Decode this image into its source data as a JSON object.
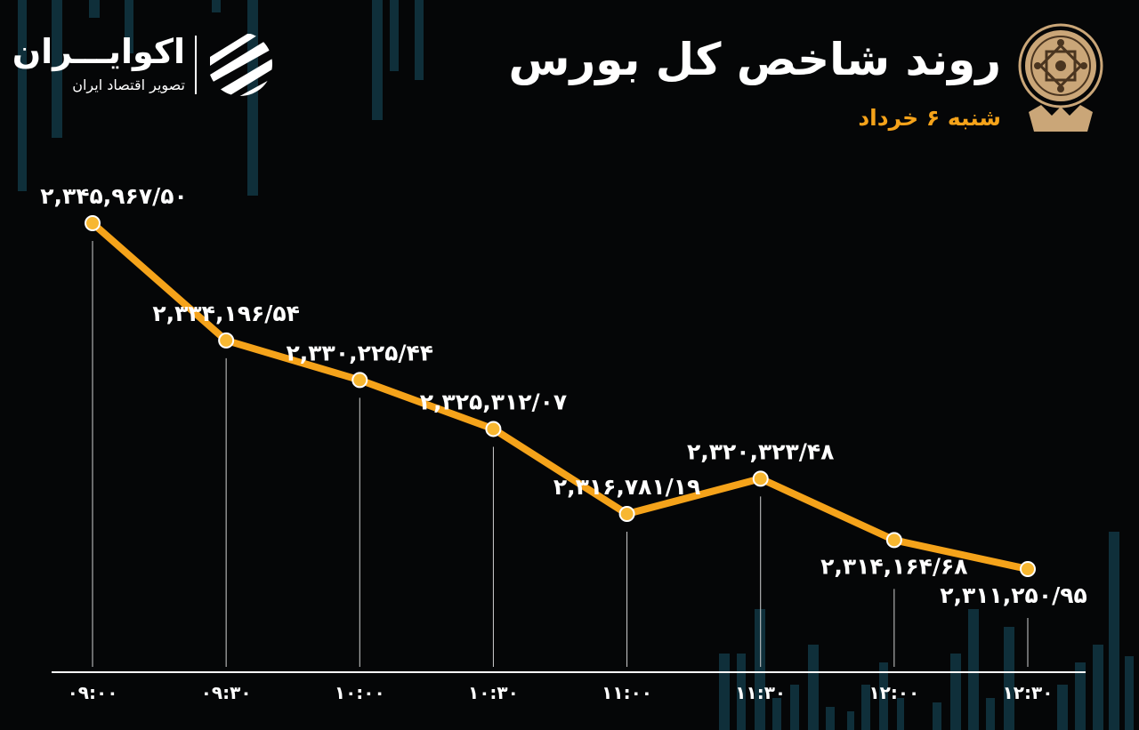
{
  "header": {
    "title": "روند شاخص کل بورس",
    "subtitle": "شنبه ۶ خرداد"
  },
  "brand": {
    "name": "اکوایـــران",
    "tagline": "تصویر اقتصاد ایران",
    "logo_icon": "ecoiran-stripes-logo-icon",
    "seal_icon": "tehran-stock-exchange-seal-icon"
  },
  "colors": {
    "background": "#050607",
    "line": "#f5a31a",
    "marker_fill": "#f7b731",
    "label": "#ffffff",
    "subtitle": "#f5a31a",
    "decor_bars": "#0f2f3a"
  },
  "chart_data": {
    "type": "line",
    "title": "روند شاخص کل بورس",
    "x": [
      "۰۹:۰۰",
      "۰۹:۳۰",
      "۱۰:۰۰",
      "۱۰:۳۰",
      "۱۱:۰۰",
      "۱۱:۳۰",
      "۱۲:۰۰",
      "۱۲:۳۰"
    ],
    "values": [
      2345967.5,
      2334196.54,
      2330225.44,
      2325312.07,
      2316781.19,
      2320323.48,
      2314164.68,
      2311250.95
    ],
    "labels": [
      "۲,۳۴۵,۹۶۷/۵۰",
      "۲,۳۳۴,۱۹۶/۵۴",
      "۲,۳۳۰,۲۲۵/۴۴",
      "۲,۳۲۵,۳۱۲/۰۷",
      "۲,۳۱۶,۷۸۱/۱۹",
      "۲,۳۲۰,۳۲۳/۴۸",
      "۲,۳۱۴,۱۶۴/۶۸",
      "۲,۳۱۱,۲۵۰/۹۵"
    ],
    "label_positions": [
      "above",
      "above",
      "above",
      "above",
      "above",
      "above",
      "below",
      "below"
    ],
    "xlabel": "",
    "ylabel": "",
    "grid": false,
    "legend": "none"
  }
}
